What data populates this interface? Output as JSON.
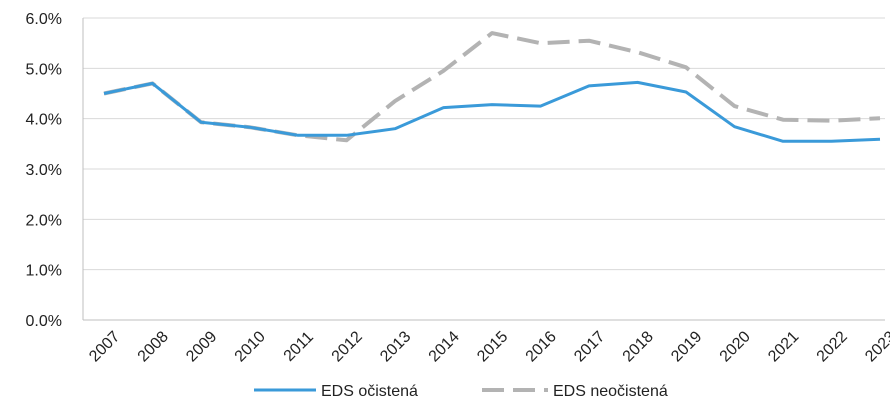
{
  "chart_data": {
    "type": "line",
    "x": [
      "2007",
      "2008",
      "2009",
      "2010",
      "2011",
      "2012",
      "2013",
      "2014",
      "2015",
      "2016",
      "2017",
      "2018",
      "2019",
      "2020",
      "2021",
      "2022",
      "2023"
    ],
    "ylim": [
      0,
      6
    ],
    "yticks": [
      0,
      1,
      2,
      3,
      4,
      5,
      6
    ],
    "ytick_labels": [
      "0.0%",
      "1.0%",
      "2.0%",
      "3.0%",
      "4.0%",
      "5.0%",
      "6.0%"
    ],
    "grid": true,
    "legend_position": "bottom",
    "series": [
      {
        "name": "EDS očistená",
        "color": "#3a9ad9",
        "style": "solid",
        "values": [
          4.5,
          4.7,
          3.93,
          3.83,
          3.67,
          3.67,
          3.8,
          4.22,
          4.28,
          4.25,
          4.65,
          4.72,
          4.53,
          3.84,
          3.55,
          3.55,
          3.59
        ]
      },
      {
        "name": "EDS neočistená",
        "color": "#b3b3b3",
        "style": "dashed",
        "values": [
          4.5,
          4.7,
          3.93,
          3.83,
          3.67,
          3.57,
          4.35,
          4.95,
          5.7,
          5.5,
          5.55,
          5.32,
          5.02,
          4.25,
          3.98,
          3.96,
          4.01
        ]
      }
    ]
  }
}
